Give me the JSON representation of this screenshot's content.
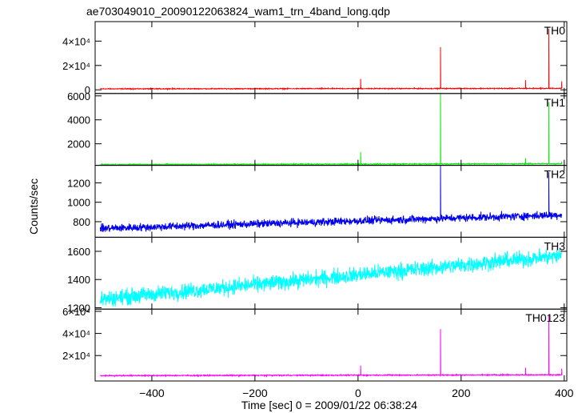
{
  "chart_data": {
    "type": "line",
    "title": "ae703049010_20090122063824_wam1_trn_4band_long.qdp",
    "xlabel": "Time [sec] 0 = 2009/01/22 06:38:24",
    "ylabel": "Counts/sec",
    "xlim": [
      -510,
      405
    ],
    "x_ticks": [
      -400,
      -200,
      0,
      200,
      400
    ],
    "x_tick_labels": [
      "−400",
      "−200",
      "0",
      "200",
      "400"
    ],
    "grid": false,
    "panels": [
      {
        "name": "TH0",
        "color": "#ff0000",
        "ylim": [
          -3000,
          56000
        ],
        "y_ticks": [
          0,
          20000,
          40000
        ],
        "y_tick_labels": [
          "0",
          "2×10⁴",
          "4×10⁴"
        ],
        "baseline": {
          "start": 800,
          "end": 1200,
          "noise": 350
        },
        "spikes": [
          [
            5,
            9000
          ],
          [
            33,
            1500
          ],
          [
            160,
            35000
          ],
          [
            285,
            1200
          ],
          [
            325,
            8000
          ],
          [
            370,
            50000
          ],
          [
            395,
            7000
          ]
        ]
      },
      {
        "name": "TH1",
        "color": "#00ee00",
        "ylim": [
          200,
          6200
        ],
        "y_ticks": [
          2000,
          4000,
          6000
        ],
        "y_tick_labels": [
          "2000",
          "4000",
          "6000"
        ],
        "baseline": {
          "start": 260,
          "end": 340,
          "noise": 40
        },
        "spikes": [
          [
            5,
            1300
          ],
          [
            160,
            6200
          ],
          [
            325,
            800
          ],
          [
            370,
            5500
          ],
          [
            395,
            500
          ]
        ]
      },
      {
        "name": "TH2",
        "color": "#0000ee",
        "ylim": [
          640,
          1380
        ],
        "y_ticks": [
          800,
          1000,
          1200
        ],
        "y_tick_labels": [
          "800",
          "1000",
          "1200"
        ],
        "baseline": {
          "start": 730,
          "end": 870,
          "noise": 40
        },
        "spikes": [
          [
            160,
            1380
          ],
          [
            370,
            1310
          ]
        ]
      },
      {
        "name": "TH3",
        "color": "#00ffff",
        "ylim": [
          1190,
          1700
        ],
        "y_ticks": [
          1200,
          1400,
          1600
        ],
        "y_tick_labels": [
          "1200",
          "1400",
          "1600"
        ],
        "baseline": {
          "start": 1260,
          "end": 1570,
          "noise": 55
        },
        "spikes": []
      },
      {
        "name": "TH0123",
        "color": "#ff00ff",
        "ylim": [
          -3000,
          62000
        ],
        "y_ticks": [
          20000,
          40000,
          60000
        ],
        "y_tick_labels": [
          "2×10⁴",
          "4×10⁴",
          "6×10⁴"
        ],
        "baseline": {
          "start": 1800,
          "end": 2600,
          "noise": 500
        },
        "spikes": [
          [
            5,
            11000
          ],
          [
            160,
            44000
          ],
          [
            325,
            9000
          ],
          [
            370,
            56000
          ],
          [
            395,
            8000
          ]
        ]
      }
    ]
  }
}
